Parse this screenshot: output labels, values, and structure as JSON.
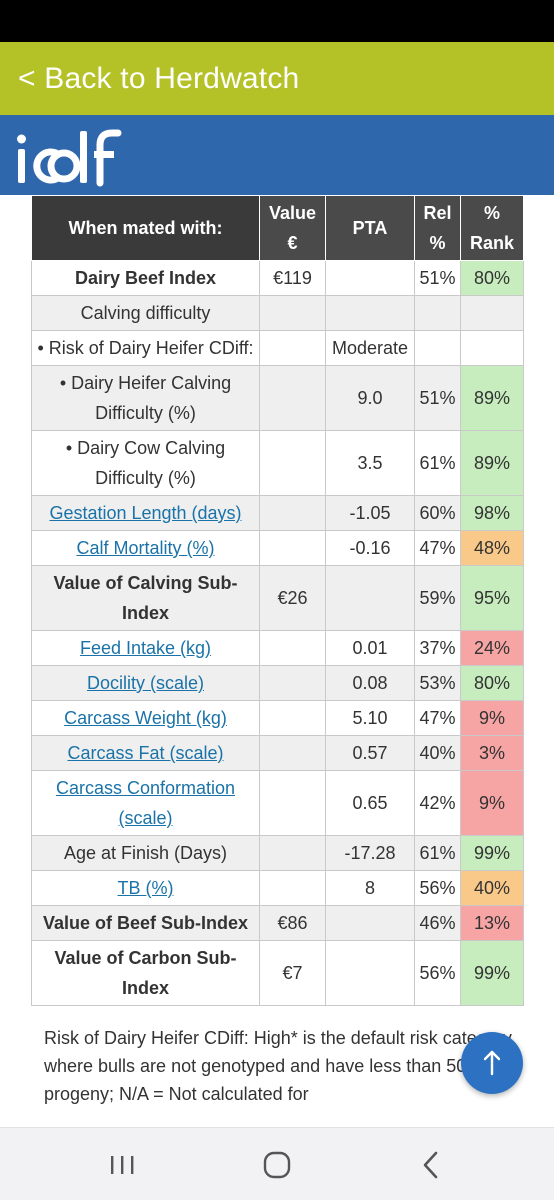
{
  "header": {
    "back_label": "< Back to Herdwatch",
    "logo_text": "icbf",
    "accent_green": "#b4c227",
    "brand_blue": "#2f67ac"
  },
  "table": {
    "headers": [
      "When mated with:",
      "Value €",
      "PTA",
      "Rel %",
      "% Rank"
    ],
    "rows": [
      {
        "label": "Dairy Beef Index",
        "value": "€119",
        "pta": "",
        "rel": "51%",
        "rank": "80%"
      },
      {
        "label": "Calving difficulty",
        "value": "",
        "pta": "",
        "rel": "",
        "rank": ""
      },
      {
        "label": "• Risk of Dairy Heifer CDiff:",
        "value": "",
        "pta": "Moderate",
        "rel": "",
        "rank": ""
      },
      {
        "label": "• Dairy Heifer Calving Difficulty (%)",
        "value": "",
        "pta": "9.0",
        "rel": "51%",
        "rank": "89%"
      },
      {
        "label": "• Dairy Cow Calving Difficulty (%)",
        "value": "",
        "pta": "3.5",
        "rel": "61%",
        "rank": "89%"
      },
      {
        "label": "Gestation Length (days)",
        "value": "",
        "pta": "-1.05",
        "rel": "60%",
        "rank": "98%"
      },
      {
        "label": "Calf Mortality (%)",
        "value": "",
        "pta": "-0.16",
        "rel": "47%",
        "rank": "48%"
      },
      {
        "label": "Value of Calving Sub-Index",
        "value": "€26",
        "pta": "",
        "rel": "59%",
        "rank": "95%"
      },
      {
        "label": "Feed Intake (kg)",
        "value": "",
        "pta": "0.01",
        "rel": "37%",
        "rank": "24%"
      },
      {
        "label": "Docility (scale)",
        "value": "",
        "pta": "0.08",
        "rel": "53%",
        "rank": "80%"
      },
      {
        "label": "Carcass Weight (kg)",
        "value": "",
        "pta": "5.10",
        "rel": "47%",
        "rank": "9%"
      },
      {
        "label": "Carcass Fat (scale)",
        "value": "",
        "pta": "0.57",
        "rel": "40%",
        "rank": "3%"
      },
      {
        "label": "Carcass Conformation (scale)",
        "value": "",
        "pta": "0.65",
        "rel": "42%",
        "rank": "9%"
      },
      {
        "label": "Age at Finish (Days)",
        "value": "",
        "pta": "-17.28",
        "rel": "61%",
        "rank": "99%"
      },
      {
        "label": "TB (%)",
        "value": "",
        "pta": "8",
        "rel": "56%",
        "rank": "40%"
      },
      {
        "label": "Value of Beef Sub-Index",
        "value": "€86",
        "pta": "",
        "rel": "46%",
        "rank": "13%"
      },
      {
        "label": "Value of Carbon Sub-Index",
        "value": "€7",
        "pta": "",
        "rel": "56%",
        "rank": "99%"
      }
    ]
  },
  "note": {
    "text": "Risk of Dairy Heifer CDiff: High* is the default risk category where bulls are not genotyped and have less than 50 progeny; N/A = Not calculated for"
  },
  "fab": {
    "icon": "arrow-up-icon"
  },
  "nav": {
    "recents_icon": "recents-icon",
    "home_icon": "home-icon",
    "back_icon": "back-icon"
  }
}
